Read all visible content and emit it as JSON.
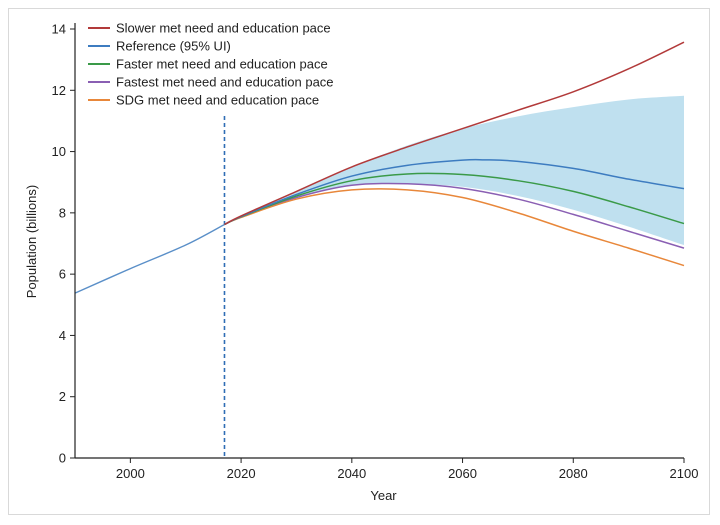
{
  "chart_data": {
    "type": "line",
    "xlabel": "Year",
    "ylabel": "Population (billions)",
    "xlim": [
      1990,
      2100
    ],
    "ylim": [
      0,
      14
    ],
    "x_ticks": [
      2000,
      2020,
      2040,
      2060,
      2080,
      2100
    ],
    "y_ticks": [
      0,
      2,
      4,
      6,
      8,
      10,
      12,
      14
    ],
    "grid": false,
    "legend_position": "top-left",
    "reference_line": {
      "x": 2017,
      "style": "dashed",
      "color": "#2f6db5"
    },
    "history": {
      "name": "",
      "color": "#5a8fc8",
      "x": [
        1990,
        2000,
        2010,
        2017
      ],
      "y": [
        5.38,
        6.18,
        6.95,
        7.62
      ]
    },
    "uncertainty_band": {
      "name": "Reference (95% UI)",
      "color": "#bfe0ef",
      "x": [
        2017,
        2020,
        2030,
        2040,
        2050,
        2060,
        2070,
        2080,
        2090,
        2100
      ],
      "upper": [
        7.62,
        7.9,
        8.7,
        9.5,
        10.2,
        10.75,
        11.15,
        11.45,
        11.7,
        11.82
      ],
      "lower": [
        7.62,
        7.88,
        8.5,
        8.9,
        8.95,
        8.85,
        8.55,
        8.1,
        7.55,
        6.95
      ]
    },
    "series": [
      {
        "name": "Slower met need and education pace",
        "color": "#b23a3a",
        "x": [
          2017,
          2020,
          2030,
          2040,
          2050,
          2060,
          2070,
          2080,
          2090,
          2100
        ],
        "y": [
          7.62,
          7.9,
          8.7,
          9.5,
          10.15,
          10.75,
          11.35,
          11.95,
          12.7,
          13.57
        ]
      },
      {
        "name": "Reference (95% UI)",
        "color": "#3d7cc0",
        "x": [
          2017,
          2020,
          2030,
          2040,
          2050,
          2060,
          2064,
          2070,
          2080,
          2090,
          2100
        ],
        "y": [
          7.62,
          7.88,
          8.6,
          9.2,
          9.55,
          9.72,
          9.73,
          9.68,
          9.45,
          9.1,
          8.79
        ]
      },
      {
        "name": "Faster met need and education pace",
        "color": "#3a9a48",
        "x": [
          2017,
          2020,
          2030,
          2040,
          2050,
          2060,
          2070,
          2080,
          2090,
          2100
        ],
        "y": [
          7.62,
          7.87,
          8.55,
          9.05,
          9.27,
          9.25,
          9.05,
          8.7,
          8.2,
          7.65
        ]
      },
      {
        "name": "Fastest met need and education pace",
        "color": "#8a5fb3",
        "x": [
          2017,
          2020,
          2030,
          2040,
          2050,
          2060,
          2070,
          2080,
          2090,
          2100
        ],
        "y": [
          7.62,
          7.87,
          8.5,
          8.9,
          8.95,
          8.8,
          8.45,
          7.95,
          7.4,
          6.85
        ]
      },
      {
        "name": "SDG met need and education pace",
        "color": "#e8873a",
        "x": [
          2017,
          2020,
          2030,
          2040,
          2050,
          2060,
          2070,
          2080,
          2090,
          2100
        ],
        "y": [
          7.62,
          7.85,
          8.45,
          8.75,
          8.75,
          8.5,
          8.0,
          7.4,
          6.85,
          6.28
        ]
      }
    ]
  }
}
